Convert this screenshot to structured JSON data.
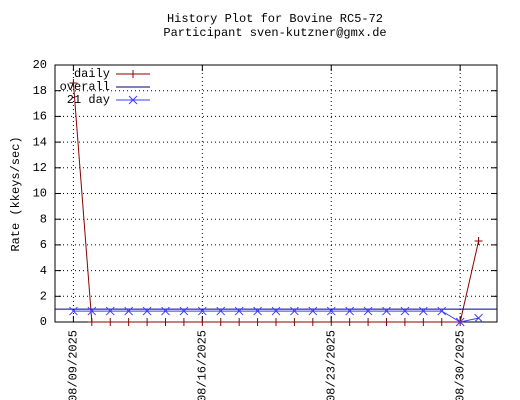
{
  "chart_data": {
    "type": "line",
    "title": "History Plot for Bovine RC5-72",
    "subtitle": "Participant sven-kutzner@gmx.de",
    "y_label": "Rate (kkeys/sec)",
    "xlim": [
      "08/08/2025",
      "09/01/2025"
    ],
    "xticks": [
      "08/09/2025",
      "08/16/2025",
      "08/23/2025",
      "08/30/2025"
    ],
    "ylim": [
      0,
      20
    ],
    "yticks": [
      0,
      2,
      4,
      6,
      8,
      10,
      12,
      14,
      16,
      18,
      20
    ],
    "grid": true,
    "legend": "top-left",
    "series": [
      {
        "name": "daily",
        "color": "#8b0000",
        "marker": "plus",
        "x": [
          "08/09/2025",
          "08/10/2025",
          "08/11/2025",
          "08/12/2025",
          "08/13/2025",
          "08/14/2025",
          "08/15/2025",
          "08/16/2025",
          "08/17/2025",
          "08/18/2025",
          "08/19/2025",
          "08/20/2025",
          "08/21/2025",
          "08/22/2025",
          "08/23/2025",
          "08/24/2025",
          "08/25/2025",
          "08/26/2025",
          "08/27/2025",
          "08/28/2025",
          "08/29/2025",
          "08/30/2025",
          "08/31/2025"
        ],
        "values": [
          18.6,
          0,
          0,
          0,
          0,
          0,
          0,
          0,
          0,
          0,
          0,
          0,
          0,
          0,
          0,
          0,
          0,
          0,
          0,
          0,
          0,
          0,
          6.3
        ]
      },
      {
        "name": "overall",
        "color": "#000080",
        "marker": "none",
        "x": [
          "08/08/2025",
          "09/01/2025"
        ],
        "values": [
          1.0,
          1.0
        ]
      },
      {
        "name": "21 day",
        "color": "#3c3cff",
        "marker": "cross",
        "x": [
          "08/09/2025",
          "08/10/2025",
          "08/11/2025",
          "08/12/2025",
          "08/13/2025",
          "08/14/2025",
          "08/15/2025",
          "08/16/2025",
          "08/17/2025",
          "08/18/2025",
          "08/19/2025",
          "08/20/2025",
          "08/21/2025",
          "08/22/2025",
          "08/23/2025",
          "08/24/2025",
          "08/25/2025",
          "08/26/2025",
          "08/27/2025",
          "08/28/2025",
          "08/29/2025",
          "08/30/2025",
          "08/31/2025"
        ],
        "values": [
          0.85,
          0.85,
          0.85,
          0.85,
          0.85,
          0.85,
          0.85,
          0.85,
          0.85,
          0.85,
          0.85,
          0.85,
          0.85,
          0.85,
          0.85,
          0.85,
          0.85,
          0.85,
          0.85,
          0.85,
          0.85,
          0,
          0.3
        ]
      }
    ]
  }
}
